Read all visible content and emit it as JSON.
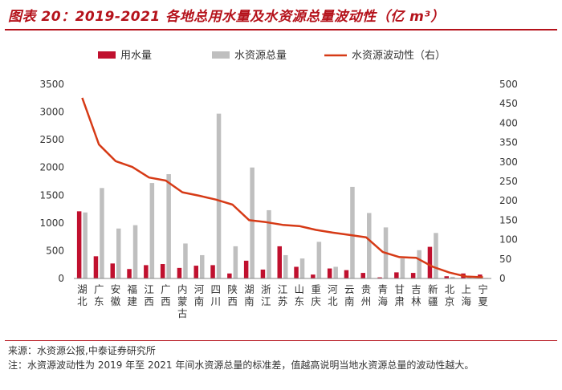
{
  "title": "图表 20：2019-2021 各地总用水量及水资源总量波动性（亿 m³）",
  "source": "来源：水资源公报,中泰证券研究所",
  "note": "注：水资源波动性为 2019 年至 2021 年间水资源总量的标准差，值越高说明当地水资源总量的波动性越大。",
  "colors": {
    "water_use": "#c0102e",
    "water_total": "#bfbfbf",
    "volatility": "#d63a16",
    "accent": "#b5121b"
  },
  "chart_data": {
    "type": "bar",
    "categories": [
      "湖北",
      "广东",
      "安徽",
      "福建",
      "江西",
      "广西",
      "内蒙古",
      "河南",
      "四川",
      "陕西",
      "湖南",
      "浙江",
      "江苏",
      "山东",
      "重庆",
      "河北",
      "云南",
      "贵州",
      "青海",
      "甘肃",
      "吉林",
      "新疆",
      "北京",
      "上海",
      "宁夏"
    ],
    "series": [
      {
        "name": "用水量",
        "kind": "bar",
        "axis": "left",
        "values": [
          1210,
          400,
          270,
          170,
          240,
          260,
          190,
          230,
          240,
          90,
          320,
          160,
          580,
          210,
          70,
          180,
          150,
          100,
          20,
          110,
          100,
          570,
          40,
          90,
          70
        ]
      },
      {
        "name": "水资源总量",
        "kind": "bar",
        "axis": "left",
        "values": [
          1190,
          1630,
          900,
          960,
          1720,
          1880,
          630,
          420,
          2970,
          580,
          2000,
          1230,
          420,
          360,
          660,
          210,
          1650,
          1180,
          920,
          360,
          510,
          820,
          30,
          40,
          10
        ]
      },
      {
        "name": "水资源波动性（右）",
        "kind": "line",
        "axis": "right",
        "values": [
          465,
          345,
          302,
          287,
          260,
          252,
          222,
          213,
          203,
          190,
          150,
          145,
          138,
          135,
          125,
          118,
          112,
          106,
          68,
          55,
          53,
          30,
          15,
          5,
          3
        ]
      }
    ],
    "y_left": {
      "min": 0,
      "max": 3500,
      "ticks": [
        0,
        500,
        1000,
        1500,
        2000,
        2500,
        3000,
        3500
      ]
    },
    "y_right": {
      "min": 0,
      "max": 500,
      "ticks": [
        0,
        50,
        100,
        150,
        200,
        250,
        300,
        350,
        400,
        450,
        500
      ]
    },
    "legend_position": "top",
    "grid": false
  }
}
